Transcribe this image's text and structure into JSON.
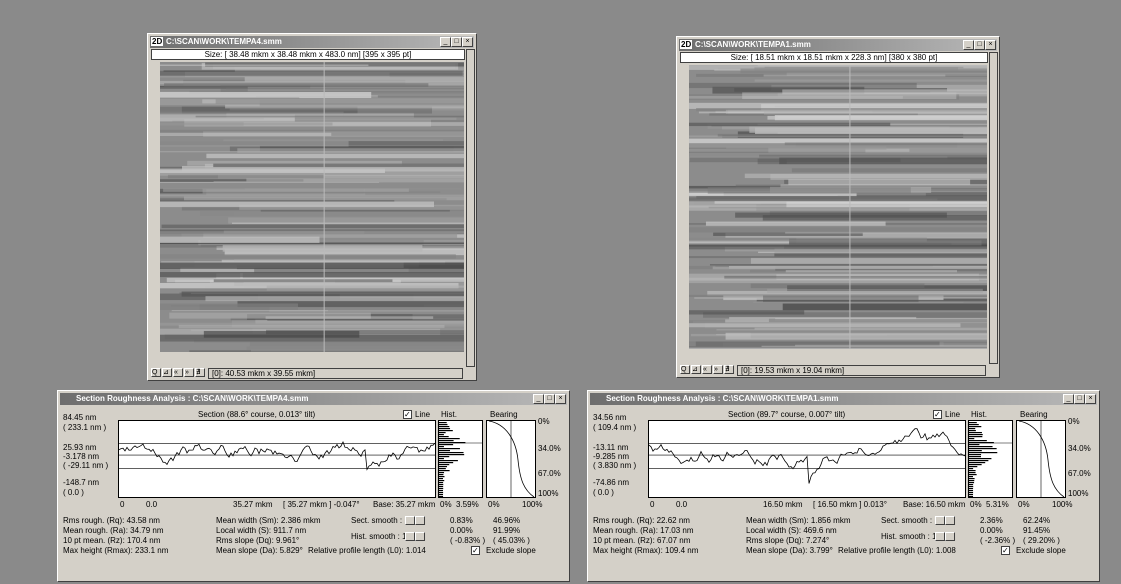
{
  "windows": [
    {
      "title": "C:\\SCAN\\WORK\\TEMPA4.smm",
      "size": "Size: [ 38.48 mkm x 38.48 mkm x 483.0 nm] [395 x 395 pt]",
      "status": "[0]: 40.53 mkm x 39.55 mkm]"
    },
    {
      "title": "C:\\SCAN\\WORK\\TEMPA1.smm",
      "size": "Size: [ 18.51 mkm x 18.51 mkm x 228.3 nm] [380 x 380 pt]",
      "status": "[0]: 19.53 mkm x 19.04 mkm]"
    }
  ],
  "analysis": [
    {
      "title": "Section Roughness Analysis : C:\\SCAN\\WORK\\TEMPA4.smm",
      "section": "Section (88.6° course,  0.013° tilt)",
      "line": "Line",
      "hist": "Hist.",
      "bearing": "Bearing",
      "y_labels": [
        "84.45 nm",
        "( 233.1 nm )",
        "25.93 nm",
        "-3.178 nm",
        "( -29.11 nm )",
        "-148.7 nm",
        "( 0.0 )"
      ],
      "x_labels": [
        "0",
        "0.0",
        "35.27 mkm",
        "[ 35.27 mkm ] -0.047°",
        "Base:  35.27 mkm"
      ],
      "hist_ticks": [
        "0%",
        "3.59%"
      ],
      "bearing_x": [
        "0%",
        "100%"
      ],
      "bearing_y": [
        "0%",
        "34.0%",
        "67.0%",
        "100%"
      ],
      "stats_left": [
        "Rms rough.  (Rq): 43.58 nm",
        "Mean rough.  (Ra): 34.79 nm",
        "10 pt mean.  (Rz): 170.4 nm",
        "Max height (Rmax): 233.1 nm"
      ],
      "stats_mid": [
        "Mean width  (Sm): 2.386 mkm",
        "Local width  (S): 911.7 nm",
        "Rms slope  (Dq): 9.961°",
        "Mean slope  (Da): 5.829°"
      ],
      "sect_smooth": "Sect. smooth : 1",
      "hist_smooth": "Hist. smooth : 1",
      "l0": "Relative profile length  (L0):  1.014",
      "pct1": [
        "0.83%",
        "0.00%",
        "( -0.83% )"
      ],
      "pct2": [
        "46.96%",
        "91.99%",
        "( 45.03% )"
      ],
      "exclude": "Exclude slope"
    },
    {
      "title": "Section Roughness Analysis : C:\\SCAN\\WORK\\TEMPA1.smm",
      "section": "Section (89.7° course,  0.007° tilt)",
      "line": "Line",
      "hist": "Hist.",
      "bearing": "Bearing",
      "y_labels": [
        "34.56 nm",
        "( 109.4 nm )",
        "-13.11 nm",
        "-9.285 nm",
        "( 3.830 nm )",
        "-74.86 nm",
        "( 0.0 )"
      ],
      "x_labels": [
        "0",
        "0.0",
        "16.50 mkm",
        "[ 16.50 mkm ] 0.013°",
        "Base:  16.50 mkm"
      ],
      "hist_ticks": [
        "0%",
        "5.31%"
      ],
      "bearing_x": [
        "0%",
        "100%"
      ],
      "bearing_y": [
        "0%",
        "34.0%",
        "67.0%",
        "100%"
      ],
      "stats_left": [
        "Rms rough.  (Rq): 22.62 nm",
        "Mean rough.  (Ra): 17.03 nm",
        "10 pt mean.  (Rz): 67.07 nm",
        "Max height (Rmax): 109.4 nm"
      ],
      "stats_mid": [
        "Mean width  (Sm): 1.856 mkm",
        "Local width  (S): 469.6 nm",
        "Rms slope  (Dq): 7.274°",
        "Mean slope  (Da): 3.799°"
      ],
      "sect_smooth": "Sect. smooth : 1",
      "hist_smooth": "Hist. smooth : 1",
      "l0": "Relative profile length  (L0):  1.008",
      "pct1": [
        "2.36%",
        "0.00%",
        "( -2.36% )"
      ],
      "pct2": [
        "62.24%",
        "91.45%",
        "( 29.20% )"
      ],
      "exclude": "Exclude slope"
    }
  ]
}
